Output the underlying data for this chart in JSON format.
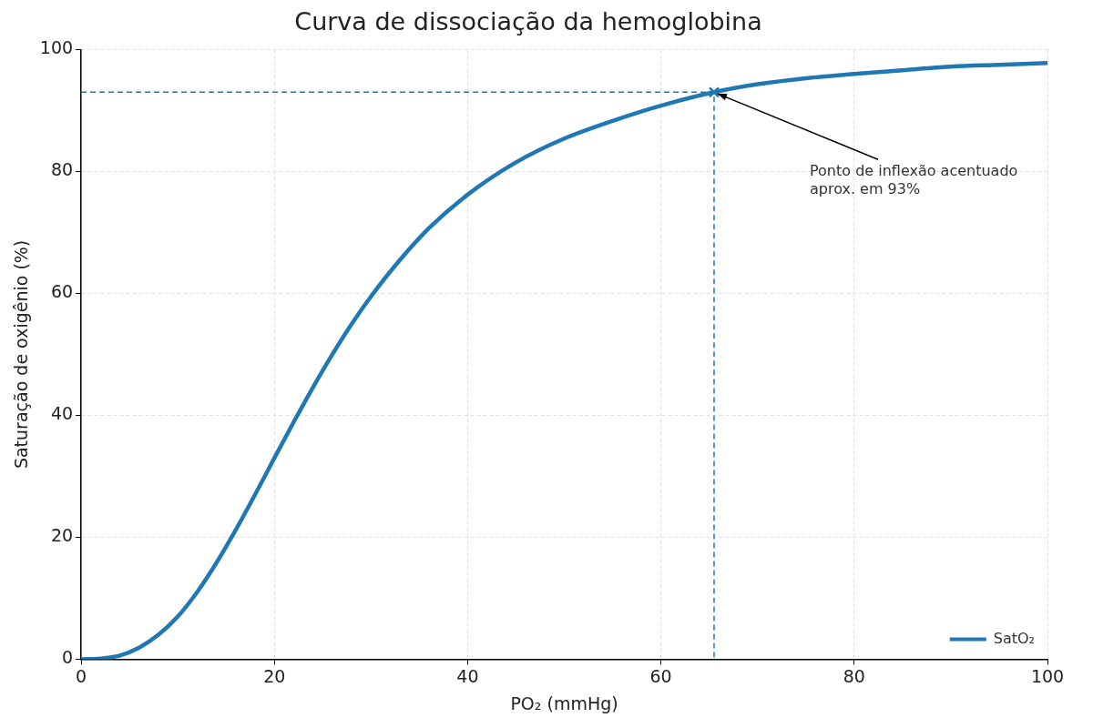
{
  "chart_data": {
    "type": "line",
    "title": "Curva de dissociação da hemoglobina",
    "xlabel": "PO₂ (mmHg)",
    "ylabel": "Saturação de oxigênio (%)",
    "xlim": [
      0,
      100
    ],
    "xticks": [
      0,
      20,
      40,
      60,
      80,
      100
    ],
    "ylim": [
      0,
      100
    ],
    "yticks": [
      0,
      20,
      40,
      60,
      80,
      100
    ],
    "grid": true,
    "legend": "bottom right",
    "series": [
      {
        "name": "SatO₂",
        "color": "#1f77b4",
        "x": [
          0,
          2,
          4,
          6,
          8,
          10,
          12,
          14,
          16,
          18,
          20,
          22,
          24,
          26,
          28,
          30,
          33,
          36,
          40,
          45,
          50,
          55,
          60,
          65.5,
          70,
          75,
          80,
          85,
          90,
          95,
          100
        ],
        "values": [
          0,
          0.1,
          0.6,
          1.9,
          4.0,
          7.0,
          11.0,
          15.8,
          21.2,
          27.0,
          33.0,
          38.9,
          44.6,
          50.0,
          55.0,
          59.5,
          65.5,
          70.7,
          76.2,
          81.5,
          85.4,
          88.3,
          90.8,
          93.0,
          94.3,
          95.3,
          96.0,
          96.6,
          97.2,
          97.5,
          97.8
        ]
      },
      {
        "color": "#1f77b4",
        "type": "line",
        "line_style": "dashed",
        "marker": "none",
        "x": [
          0,
          65.5,
          65.5
        ],
        "values": [
          93,
          93,
          0
        ]
      },
      {
        "color": "#1f77b4",
        "type": "scatter",
        "marker": "cross",
        "x": [
          65.5
        ],
        "values": [
          93
        ]
      }
    ],
    "annotations": [
      {
        "text": "Ponto de inflexão acentuado\naprox. em 93%",
        "x": 65.5,
        "y": 93
      }
    ]
  }
}
